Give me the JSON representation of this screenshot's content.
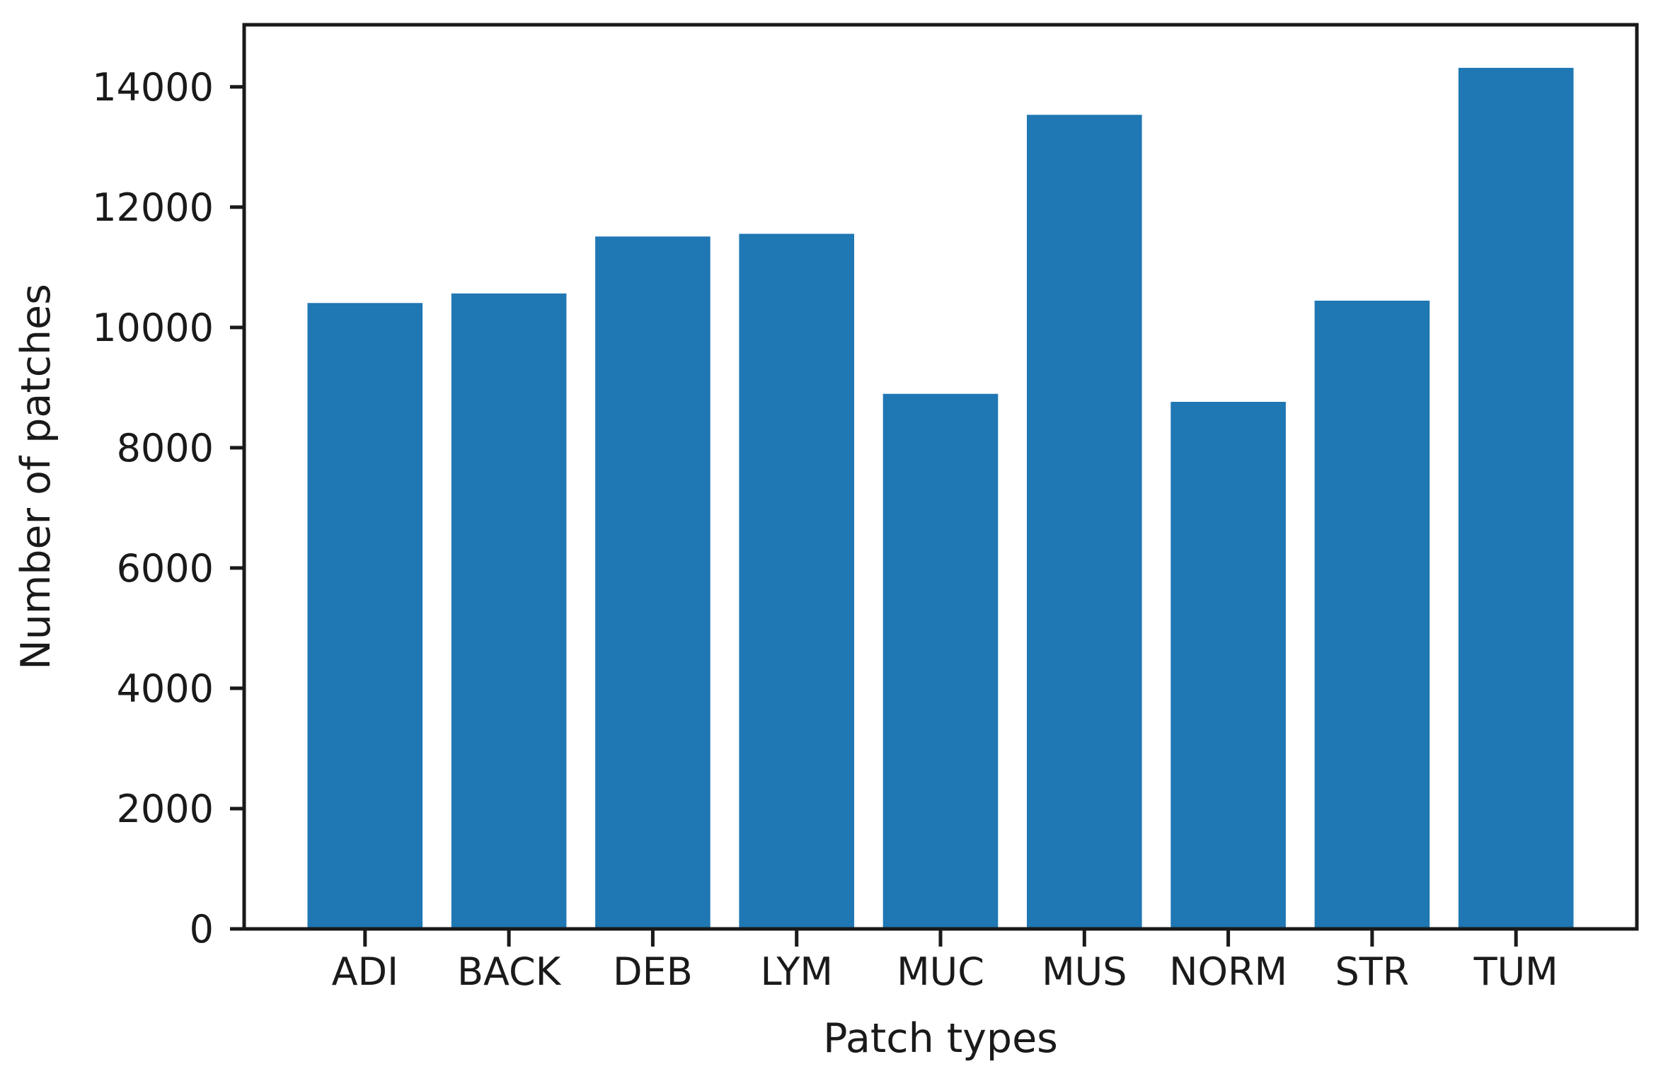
{
  "chart_data": {
    "type": "bar",
    "categories": [
      "ADI",
      "BACK",
      "DEB",
      "LYM",
      "MUC",
      "MUS",
      "NORM",
      "STR",
      "TUM"
    ],
    "values": [
      10407,
      10566,
      11512,
      11557,
      8896,
      13536,
      8763,
      10446,
      14317
    ],
    "title": "",
    "xlabel": "Patch types",
    "ylabel": "Number of patches",
    "yticks": [
      0,
      2000,
      4000,
      6000,
      8000,
      10000,
      12000,
      14000
    ],
    "ylim": [
      0,
      15033
    ],
    "bar_width_fraction": 0.8,
    "x_margin_fraction": 0.05,
    "grid": false,
    "legend": null,
    "colors": {
      "bar": "#1f77b4",
      "axis": "#1a1a1a",
      "text": "#1a1a1a",
      "background": "#ffffff"
    }
  }
}
